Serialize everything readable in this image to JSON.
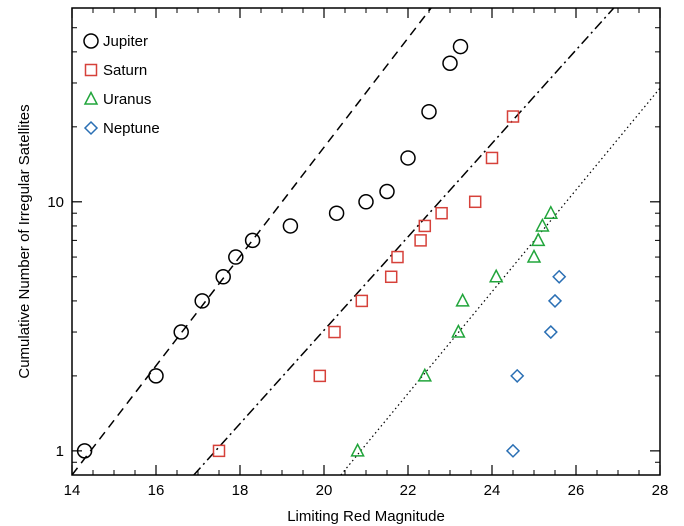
{
  "chart_data": {
    "type": "scatter",
    "xlabel": "Limiting Red Magnitude",
    "ylabel": "Cumulative Number of Irregular Satellites",
    "xlim": [
      14,
      28
    ],
    "ylim": [
      0.8,
      60
    ],
    "yscale": "log",
    "x_ticks": [
      14,
      16,
      18,
      20,
      22,
      24,
      26,
      28
    ],
    "y_ticks": [
      {
        "value": 1,
        "label": "1"
      },
      {
        "value": 10,
        "label": "10"
      }
    ],
    "legend_placement": "top-left",
    "series": [
      {
        "name": "Jupiter",
        "marker": "circle",
        "color": "#000000",
        "points": [
          [
            14.3,
            1
          ],
          [
            16.0,
            2
          ],
          [
            16.6,
            3
          ],
          [
            17.1,
            4
          ],
          [
            17.6,
            5
          ],
          [
            17.9,
            6
          ],
          [
            18.3,
            7
          ],
          [
            19.2,
            8
          ],
          [
            20.3,
            9
          ],
          [
            21.0,
            10
          ],
          [
            21.5,
            11
          ],
          [
            22.0,
            15
          ],
          [
            22.5,
            23
          ],
          [
            23.0,
            36
          ],
          [
            23.25,
            42
          ]
        ]
      },
      {
        "name": "Saturn",
        "marker": "square",
        "color": "#d6413a",
        "points": [
          [
            17.5,
            1
          ],
          [
            19.9,
            2
          ],
          [
            20.25,
            3
          ],
          [
            20.9,
            4
          ],
          [
            21.6,
            5
          ],
          [
            21.75,
            6
          ],
          [
            22.3,
            7
          ],
          [
            22.4,
            8
          ],
          [
            22.8,
            9
          ],
          [
            23.6,
            10
          ],
          [
            24.0,
            15
          ],
          [
            24.5,
            22
          ]
        ]
      },
      {
        "name": "Uranus",
        "marker": "triangle",
        "color": "#21a53b",
        "points": [
          [
            20.8,
            1
          ],
          [
            22.4,
            2
          ],
          [
            23.2,
            3
          ],
          [
            23.3,
            4
          ],
          [
            24.1,
            5
          ],
          [
            25.0,
            6
          ],
          [
            25.1,
            7
          ],
          [
            25.2,
            8
          ],
          [
            25.4,
            9
          ]
        ]
      },
      {
        "name": "Neptune",
        "marker": "diamond",
        "color": "#2a6fb4",
        "points": [
          [
            24.5,
            1
          ],
          [
            24.6,
            2
          ],
          [
            25.4,
            3
          ],
          [
            25.5,
            4
          ],
          [
            25.6,
            5
          ]
        ]
      }
    ],
    "fit_lines": [
      {
        "style": "dashed",
        "color": "#000000",
        "from": [
          14.0,
          0.8
        ],
        "to": [
          22.55,
          60
        ]
      },
      {
        "style": "dashdot",
        "color": "#000000",
        "from": [
          16.9,
          0.8
        ],
        "to": [
          26.9,
          60
        ]
      },
      {
        "style": "dotted",
        "color": "#000000",
        "from": [
          20.4,
          0.8
        ],
        "to": [
          28.0,
          28.6
        ]
      }
    ]
  }
}
